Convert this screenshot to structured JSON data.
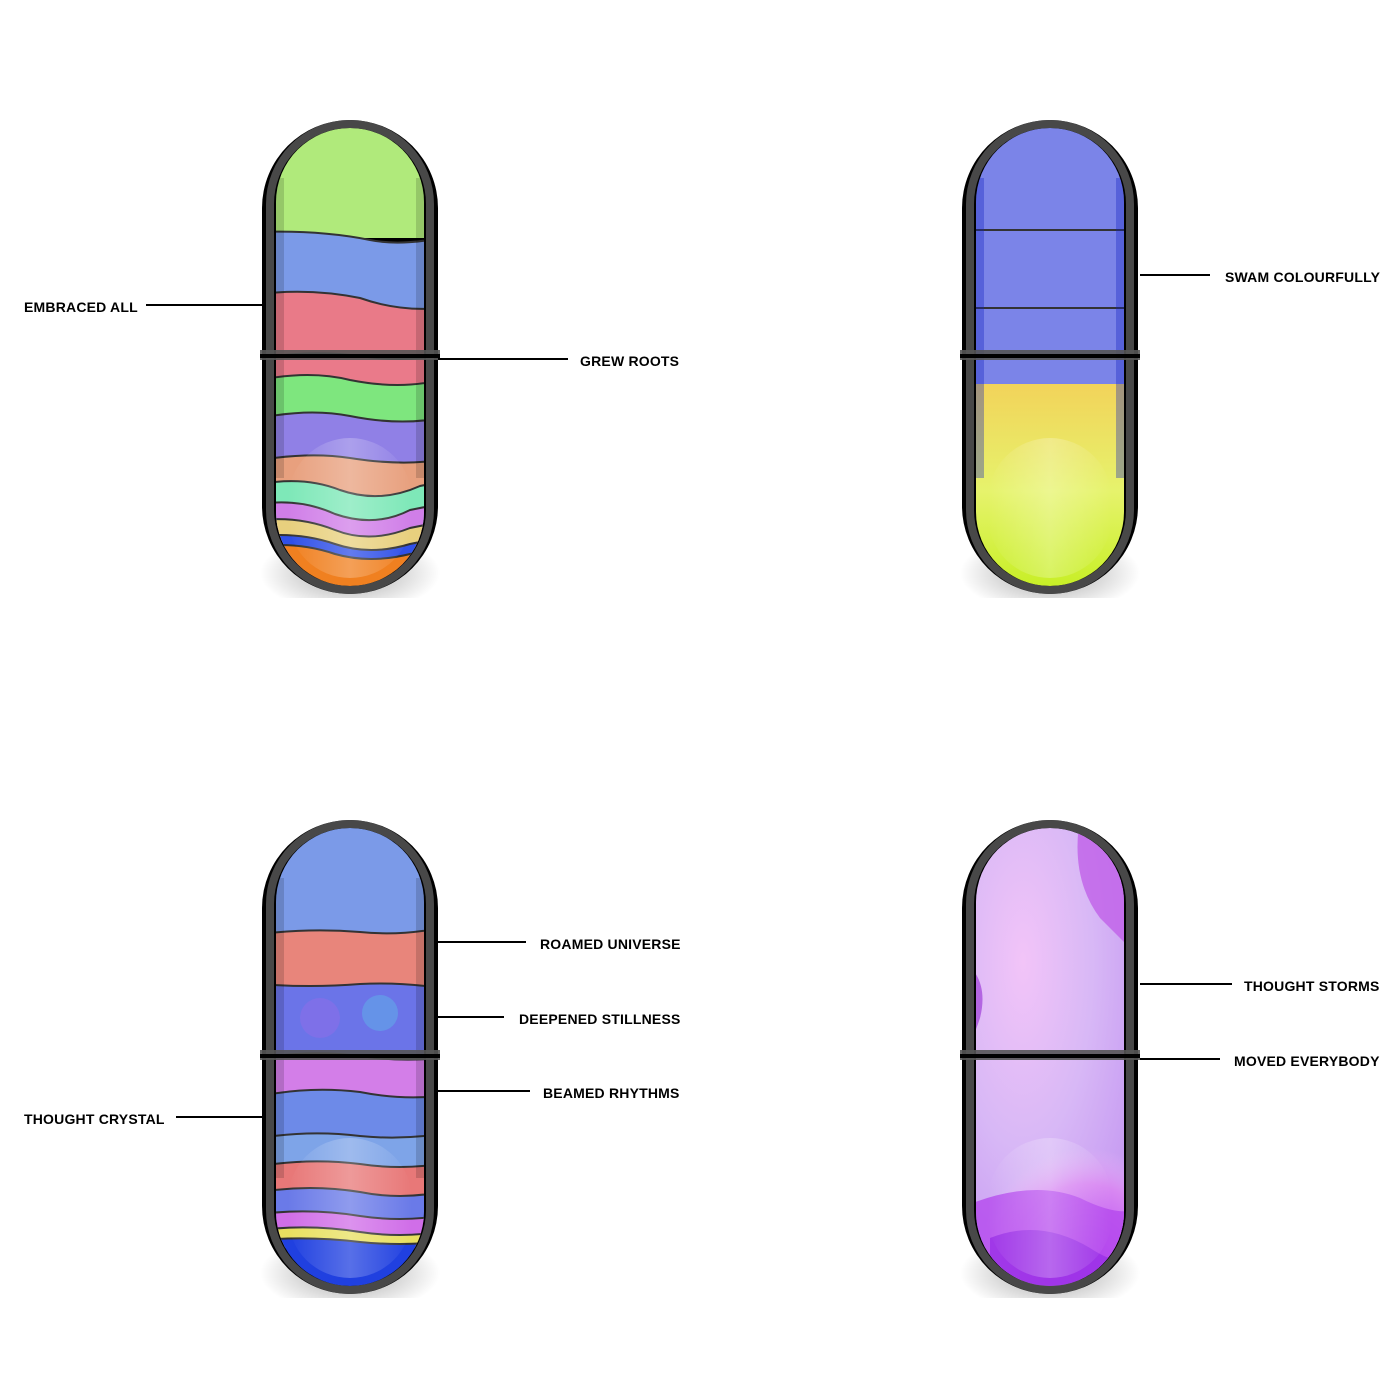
{
  "pills": [
    {
      "id": "pill-1",
      "style": "layered-bands",
      "bands": [
        "#b0ea7b",
        "#7b9ae8",
        "#e97a88",
        "#ea7a8a",
        "#7ee67e",
        "#9080e6",
        "#e8a07e",
        "#7ee8b8",
        "#d07ee8",
        "#e8d07e",
        "#f08020"
      ],
      "labels": [
        {
          "text": "EMBRACED ALL"
        },
        {
          "text": "GREW ROOTS"
        }
      ]
    },
    {
      "id": "pill-2",
      "style": "two-tone",
      "top_color": "#7b84e8",
      "bottom_colors": [
        "#f2dc58",
        "#e6f56e",
        "#c8ee3c"
      ],
      "labels": [
        {
          "text": "SWAM COLOURFULLY"
        }
      ]
    },
    {
      "id": "pill-3",
      "style": "layered-bands",
      "bands": [
        "#7b9ae8",
        "#e8857b",
        "#6b74e8",
        "#d37ee8",
        "#6d8ae8",
        "#7ea4e8",
        "#e87878",
        "#6a7ae8",
        "#d06ee8",
        "#2040e0"
      ],
      "labels": [
        {
          "text": "ROAMED UNIVERSE"
        },
        {
          "text": "DEEPENED STILLNESS"
        },
        {
          "text": "BEAMED RHYTHMS"
        },
        {
          "text": "THOUGHT CRYSTAL"
        }
      ]
    },
    {
      "id": "pill-4",
      "style": "swirl",
      "colors": [
        "#e9a8f5",
        "#c8c8f8",
        "#d68af0",
        "#b040e8",
        "#9030e0"
      ],
      "labels": [
        {
          "text": "THOUGHT STORMS"
        },
        {
          "text": "MOVED EVERYBODY"
        }
      ]
    }
  ]
}
